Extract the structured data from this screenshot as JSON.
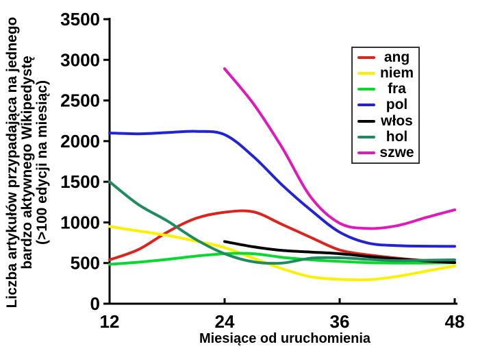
{
  "figure": {
    "background": "#ffffff",
    "text_color": "#000000",
    "axis_color": "#000000"
  },
  "chart_data": {
    "type": "line",
    "title": "",
    "xlabel": "Miesiące od uruchomienia",
    "ylabel": "Liczba artykułów przypadająca na jednego bardzo aktywnego Wikipedystę (>100 edycji na miesiąc)",
    "ylabel_lines": [
      "Liczba artykułów przypadająca na jednego",
      "bardzo aktywnego Wikipedystę",
      "(>100 edycji na miesiąc)"
    ],
    "xlim": [
      12,
      48
    ],
    "ylim": [
      0,
      3500
    ],
    "x_ticks": [
      12,
      24,
      36,
      48
    ],
    "y_ticks": [
      0,
      500,
      1000,
      1500,
      2000,
      2500,
      3000,
      3500
    ],
    "grid": false,
    "legend_position": "top-right",
    "series": [
      {
        "name": "ang",
        "color": "#db241d",
        "x": [
          12,
          15,
          18,
          21,
          24,
          27,
          30,
          33,
          36,
          39,
          42,
          45,
          48
        ],
        "y": [
          540,
          665,
          880,
          1050,
          1125,
          1130,
          975,
          815,
          660,
          600,
          560,
          530,
          510
        ]
      },
      {
        "name": "niem",
        "color": "#fdf102",
        "x": [
          12,
          15,
          18,
          21,
          24,
          27,
          30,
          33,
          36,
          39,
          42,
          45,
          48
        ],
        "y": [
          950,
          895,
          840,
          770,
          690,
          560,
          430,
          330,
          300,
          295,
          335,
          400,
          465
        ]
      },
      {
        "name": "fra",
        "color": "#09d92f",
        "x": [
          12,
          15,
          18,
          21,
          24,
          27,
          30,
          33,
          36,
          39,
          42,
          45,
          48
        ],
        "y": [
          485,
          510,
          545,
          585,
          615,
          615,
          570,
          540,
          520,
          505,
          500,
          500,
          505
        ]
      },
      {
        "name": "pol",
        "color": "#2222d6",
        "x": [
          12,
          15,
          18,
          21,
          24,
          27,
          30,
          33,
          36,
          39,
          42,
          45,
          48
        ],
        "y": [
          2100,
          2090,
          2105,
          2120,
          2080,
          1810,
          1460,
          1150,
          880,
          745,
          715,
          708,
          705
        ]
      },
      {
        "name": "włos",
        "color": "#000000",
        "x": [
          24,
          27,
          30,
          33,
          36,
          39,
          42,
          45,
          48
        ],
        "y": [
          765,
          700,
          655,
          635,
          615,
          580,
          550,
          525,
          505
        ]
      },
      {
        "name": "hol",
        "color": "#208b5c",
        "x": [
          12,
          15,
          18,
          21,
          24,
          27,
          30,
          33,
          36,
          39,
          42,
          45,
          48
        ],
        "y": [
          1500,
          1220,
          1020,
          790,
          615,
          515,
          500,
          560,
          565,
          545,
          530,
          535,
          540
        ]
      },
      {
        "name": "szwe",
        "color": "#e019bb",
        "x": [
          24,
          27,
          30,
          33,
          36,
          39,
          42,
          45,
          48
        ],
        "y": [
          2890,
          2460,
          1920,
          1310,
          990,
          925,
          960,
          1060,
          1155
        ]
      }
    ]
  }
}
